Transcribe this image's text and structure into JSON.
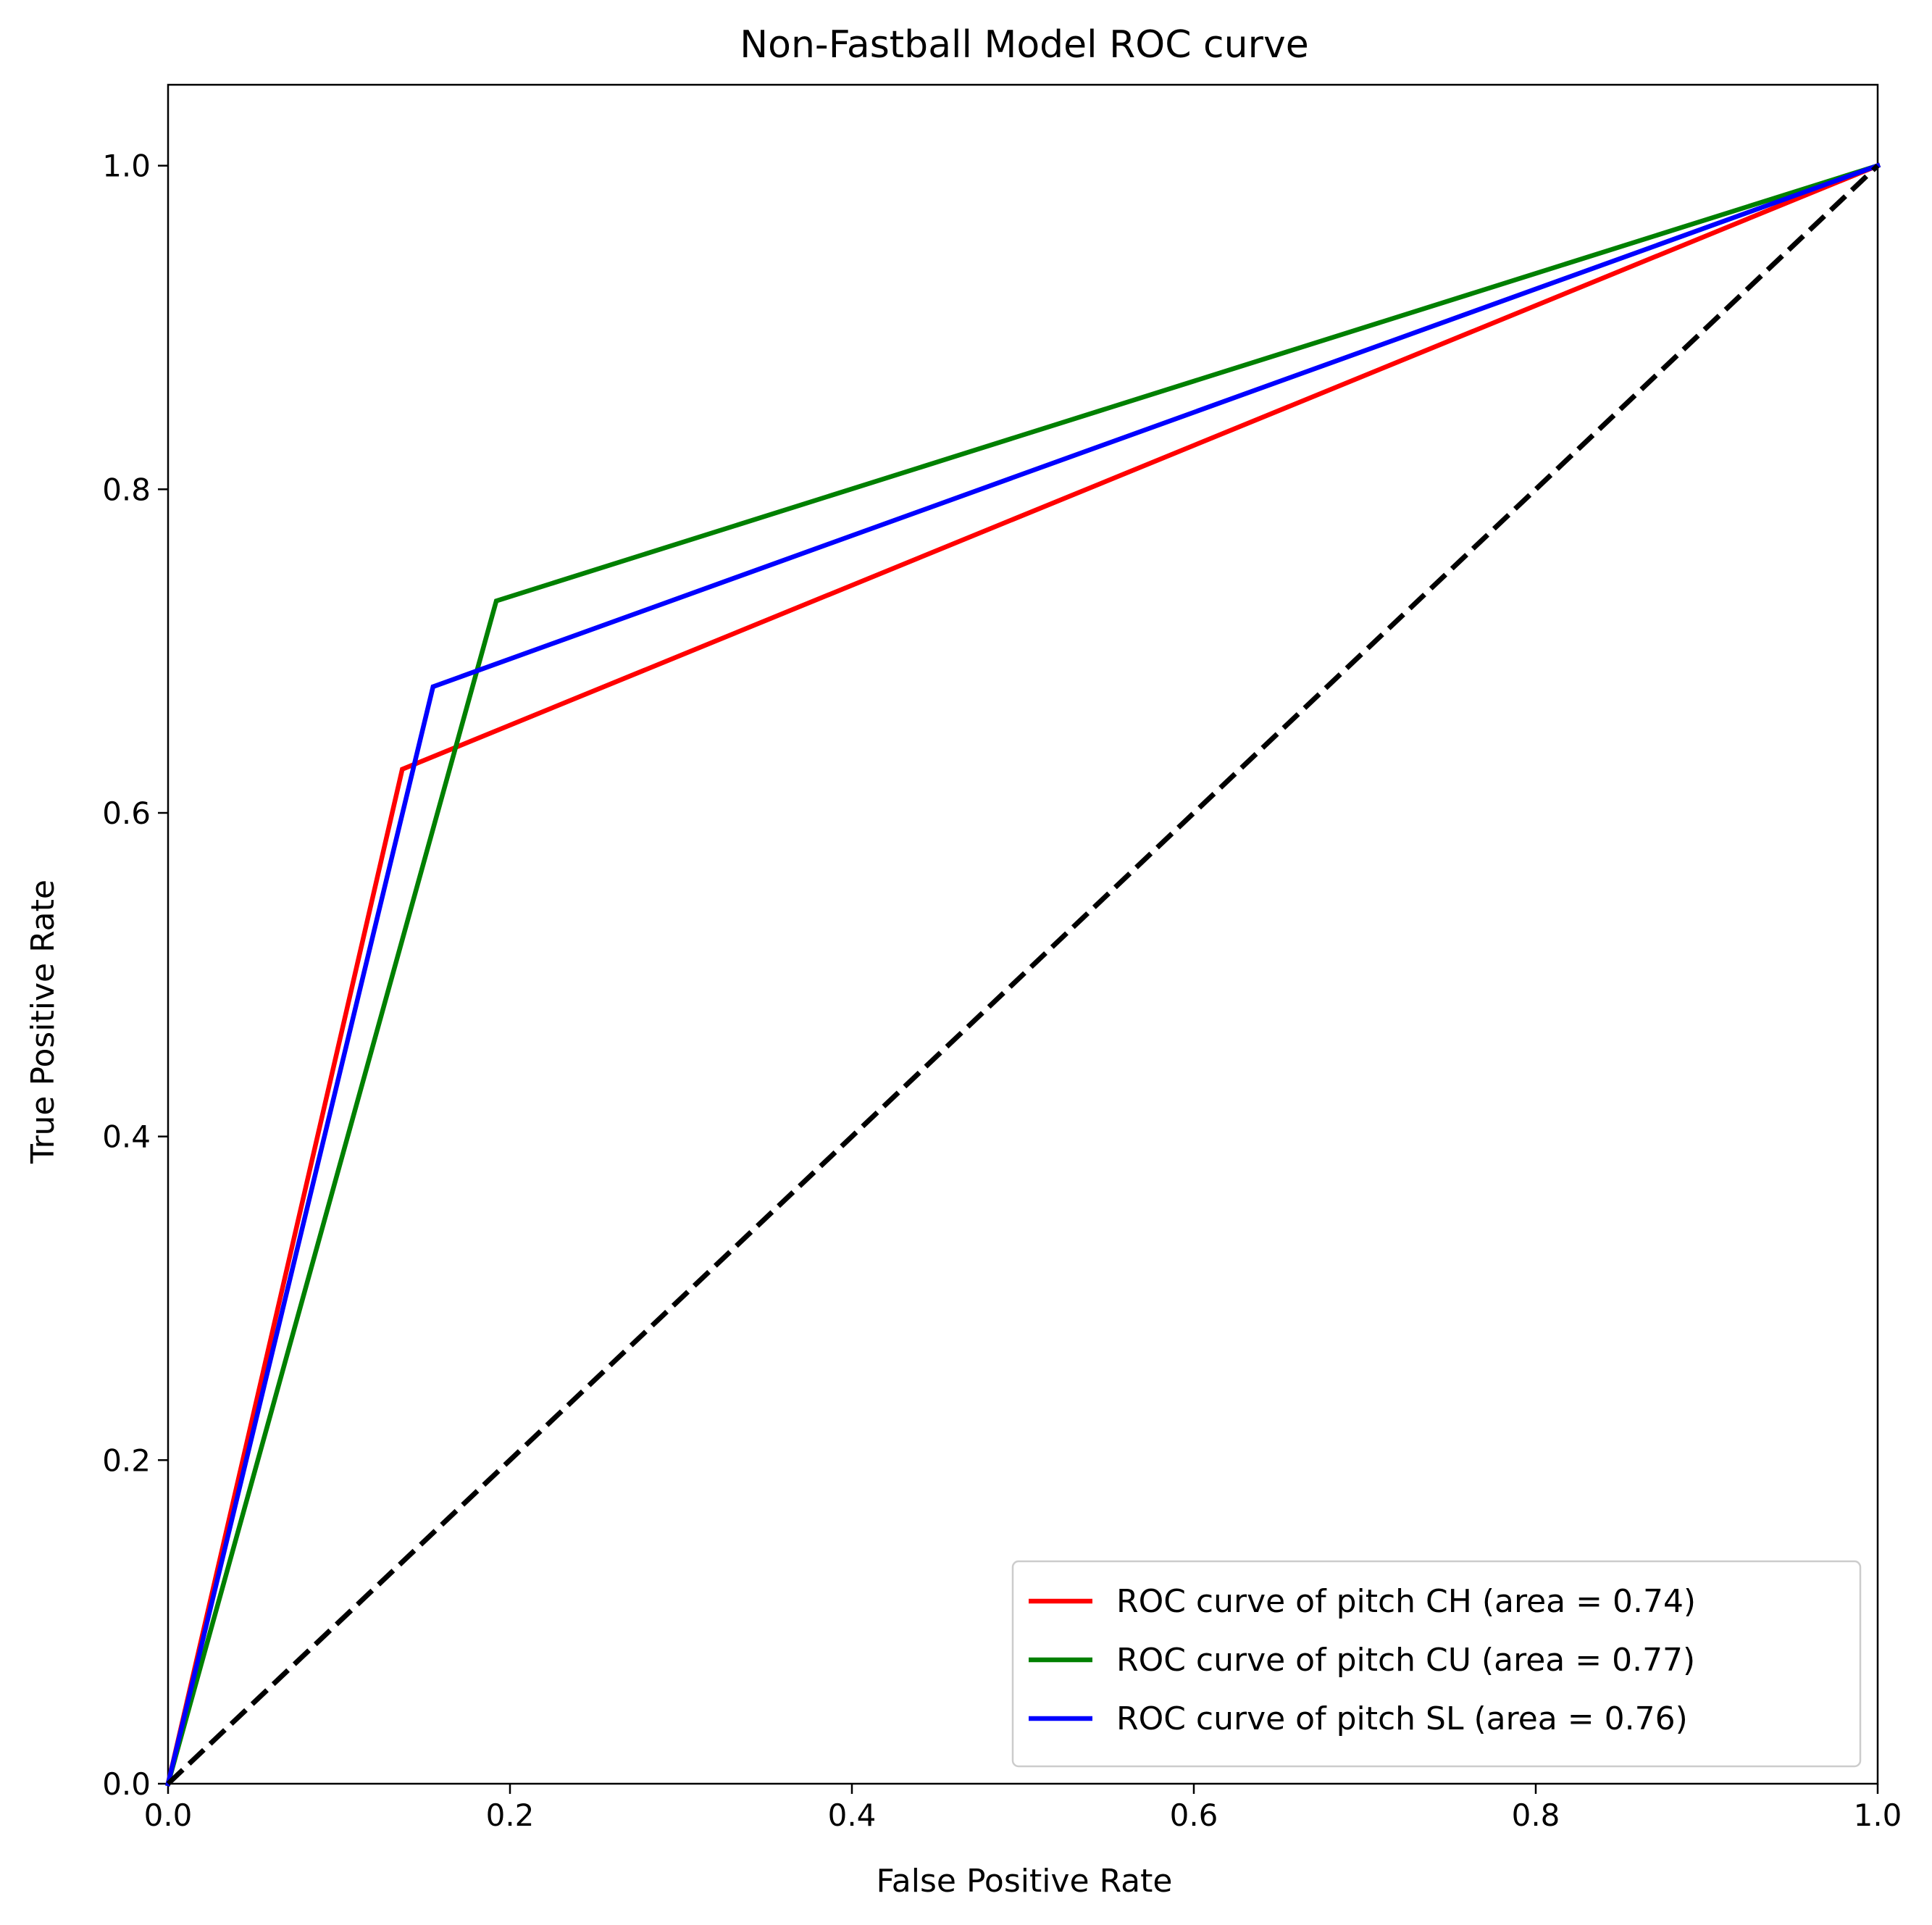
{
  "chart_data": {
    "type": "line",
    "title": "Non-Fastball Model ROC curve",
    "xlabel": "False Positive Rate",
    "ylabel": "True Positive Rate",
    "xlim": [
      0.0,
      1.0
    ],
    "ylim": [
      0.0,
      1.05
    ],
    "xticks": [
      "0.0",
      "0.2",
      "0.4",
      "0.6",
      "0.8",
      "1.0"
    ],
    "yticks": [
      "0.0",
      "0.2",
      "0.4",
      "0.6",
      "0.8",
      "1.0"
    ],
    "grid": false,
    "legend_position": "lower-right",
    "series": [
      {
        "name": "ROC curve of pitch CH (area = 0.74)",
        "color": "#ff0000",
        "x": [
          0.0,
          0.137,
          1.0
        ],
        "y": [
          0.0,
          0.627,
          1.0
        ]
      },
      {
        "name": "ROC curve of pitch CU (area = 0.77)",
        "color": "#008000",
        "x": [
          0.0,
          0.192,
          1.0
        ],
        "y": [
          0.0,
          0.731,
          1.0
        ]
      },
      {
        "name": "ROC curve of pitch SL (area = 0.76)",
        "color": "#0000ff",
        "x": [
          0.0,
          0.155,
          1.0
        ],
        "y": [
          0.0,
          0.678,
          1.0
        ]
      }
    ],
    "reference_line": {
      "color": "#000000",
      "style": "dashed",
      "x": [
        0.0,
        1.0
      ],
      "y": [
        0.0,
        1.0
      ]
    }
  }
}
